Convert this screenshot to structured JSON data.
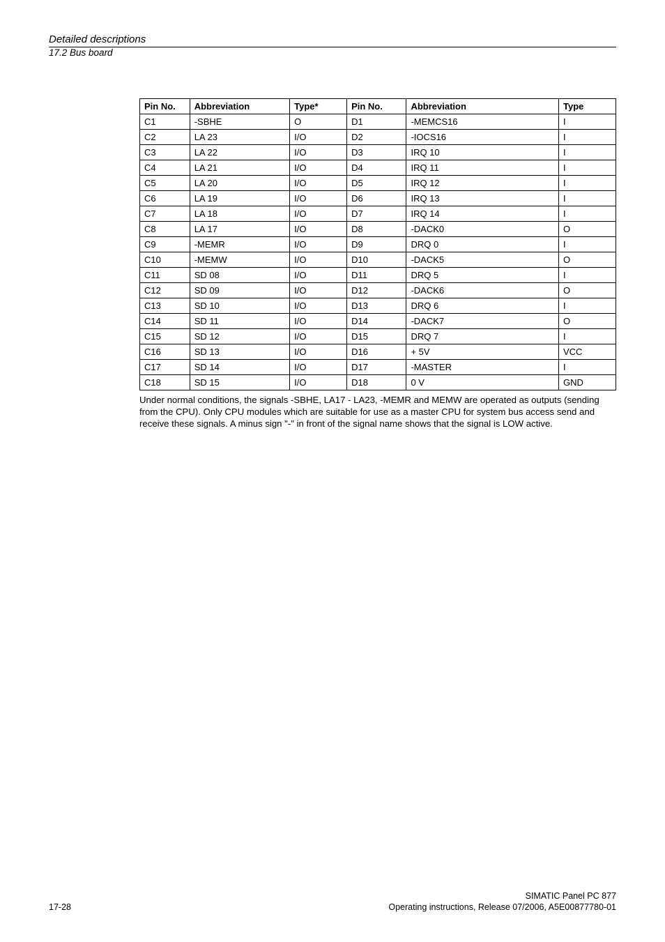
{
  "header": {
    "title": "Detailed descriptions",
    "section": "17.2 Bus board"
  },
  "table": {
    "headers": {
      "pin1": "Pin No.",
      "abbr1": "Abbreviation",
      "type1": "Type*",
      "pin2": "Pin No.",
      "abbr2": "Abbreviation",
      "type2": "Type"
    },
    "rows": [
      {
        "pin1": "C1",
        "abbr1": "-SBHE",
        "type1": "O",
        "pin2": "D1",
        "abbr2": "-MEMCS16",
        "type2": "I"
      },
      {
        "pin1": "C2",
        "abbr1": "LA 23",
        "type1": "I/O",
        "pin2": "D2",
        "abbr2": "-IOCS16",
        "type2": "I"
      },
      {
        "pin1": "C3",
        "abbr1": "LA 22",
        "type1": "I/O",
        "pin2": "D3",
        "abbr2": "IRQ 10",
        "type2": "I"
      },
      {
        "pin1": "C4",
        "abbr1": "LA 21",
        "type1": "I/O",
        "pin2": "D4",
        "abbr2": "IRQ 11",
        "type2": "I"
      },
      {
        "pin1": "C5",
        "abbr1": "LA 20",
        "type1": "I/O",
        "pin2": "D5",
        "abbr2": "IRQ 12",
        "type2": "I"
      },
      {
        "pin1": "C6",
        "abbr1": "LA 19",
        "type1": "I/O",
        "pin2": "D6",
        "abbr2": "IRQ 13",
        "type2": "I"
      },
      {
        "pin1": "C7",
        "abbr1": "LA 18",
        "type1": "I/O",
        "pin2": "D7",
        "abbr2": "IRQ 14",
        "type2": "I"
      },
      {
        "pin1": "C8",
        "abbr1": "LA 17",
        "type1": "I/O",
        "pin2": "D8",
        "abbr2": "-DACK0",
        "type2": "O"
      },
      {
        "pin1": "C9",
        "abbr1": "-MEMR",
        "type1": "I/O",
        "pin2": "D9",
        "abbr2": "DRQ 0",
        "type2": "I"
      },
      {
        "pin1": "C10",
        "abbr1": "-MEMW",
        "type1": "I/O",
        "pin2": "D10",
        "abbr2": "-DACK5",
        "type2": "O"
      },
      {
        "pin1": "C11",
        "abbr1": "SD 08",
        "type1": "I/O",
        "pin2": "D11",
        "abbr2": "DRQ 5",
        "type2": "I"
      },
      {
        "pin1": "C12",
        "abbr1": "SD 09",
        "type1": "I/O",
        "pin2": "D12",
        "abbr2": "-DACK6",
        "type2": "O"
      },
      {
        "pin1": "C13",
        "abbr1": "SD 10",
        "type1": "I/O",
        "pin2": "D13",
        "abbr2": "DRQ 6",
        "type2": "I"
      },
      {
        "pin1": "C14",
        "abbr1": "SD 11",
        "type1": "I/O",
        "pin2": "D14",
        "abbr2": "-DACK7",
        "type2": "O"
      },
      {
        "pin1": "C15",
        "abbr1": "SD 12",
        "type1": "I/O",
        "pin2": "D15",
        "abbr2": "DRQ 7",
        "type2": "I"
      },
      {
        "pin1": "C16",
        "abbr1": "SD 13",
        "type1": "I/O",
        "pin2": "D16",
        "abbr2": "+ 5V",
        "type2": "VCC"
      },
      {
        "pin1": "C17",
        "abbr1": "SD 14",
        "type1": "I/O",
        "pin2": "D17",
        "abbr2": "-MASTER",
        "type2": "I"
      },
      {
        "pin1": "C18",
        "abbr1": "SD 15",
        "type1": "I/O",
        "pin2": "D18",
        "abbr2": "0 V",
        "type2": "GND"
      }
    ]
  },
  "description": "Under normal conditions, the signals -SBHE, LA17 - LA23, -MEMR and MEMW are operated as outputs (sending from the CPU). Only CPU modules which are suitable for use as a master CPU for system bus access send and receive these signals. A minus sign \"-\" in front of the signal name shows that the signal is LOW active.",
  "footer": {
    "page": "17-28",
    "product": "SIMATIC Panel PC 877",
    "docline": "Operating instructions, Release 07/2006, A5E00877780-01"
  }
}
